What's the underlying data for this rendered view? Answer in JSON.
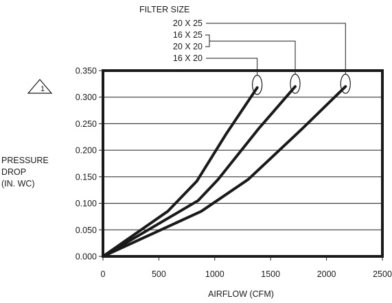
{
  "chart_data": {
    "type": "line",
    "xlabel": "AIRFLOW (CFM)",
    "ylabel_lines": [
      "PRESSURE",
      "DROP",
      "(IN. WC)"
    ],
    "xlim": [
      0,
      2500
    ],
    "ylim": [
      0,
      0.35
    ],
    "x_ticks": [
      0,
      500,
      1000,
      1500,
      2000,
      2500
    ],
    "x_tick_labels": [
      "0",
      "500",
      "1000",
      "1500",
      "2000",
      "2500"
    ],
    "y_ticks": [
      0,
      0.05,
      0.1,
      0.15,
      0.2,
      0.25,
      0.3,
      0.35
    ],
    "y_tick_labels": [
      "0.000",
      "0.050",
      "0.100",
      "0.150",
      "0.200",
      "0.250",
      "0.300",
      "0.350"
    ],
    "grid": "horizontal",
    "legend_title": "FILTER SIZE",
    "note_symbol": "1",
    "series": [
      {
        "legend_lines": [
          "16 X 20"
        ],
        "points": [
          [
            0,
            0
          ],
          [
            580,
            0.085
          ],
          [
            840,
            0.142
          ],
          [
            1100,
            0.23
          ],
          [
            1380,
            0.318
          ]
        ]
      },
      {
        "legend_lines": [
          "16 X 25",
          "20 X 20"
        ],
        "points": [
          [
            0,
            0
          ],
          [
            850,
            0.105
          ],
          [
            1030,
            0.145
          ],
          [
            1390,
            0.24
          ],
          [
            1720,
            0.32
          ]
        ]
      },
      {
        "legend_lines": [
          "20 X 25"
        ],
        "points": [
          [
            0,
            0
          ],
          [
            880,
            0.085
          ],
          [
            1300,
            0.145
          ],
          [
            1780,
            0.24
          ],
          [
            2170,
            0.32
          ]
        ]
      }
    ]
  }
}
